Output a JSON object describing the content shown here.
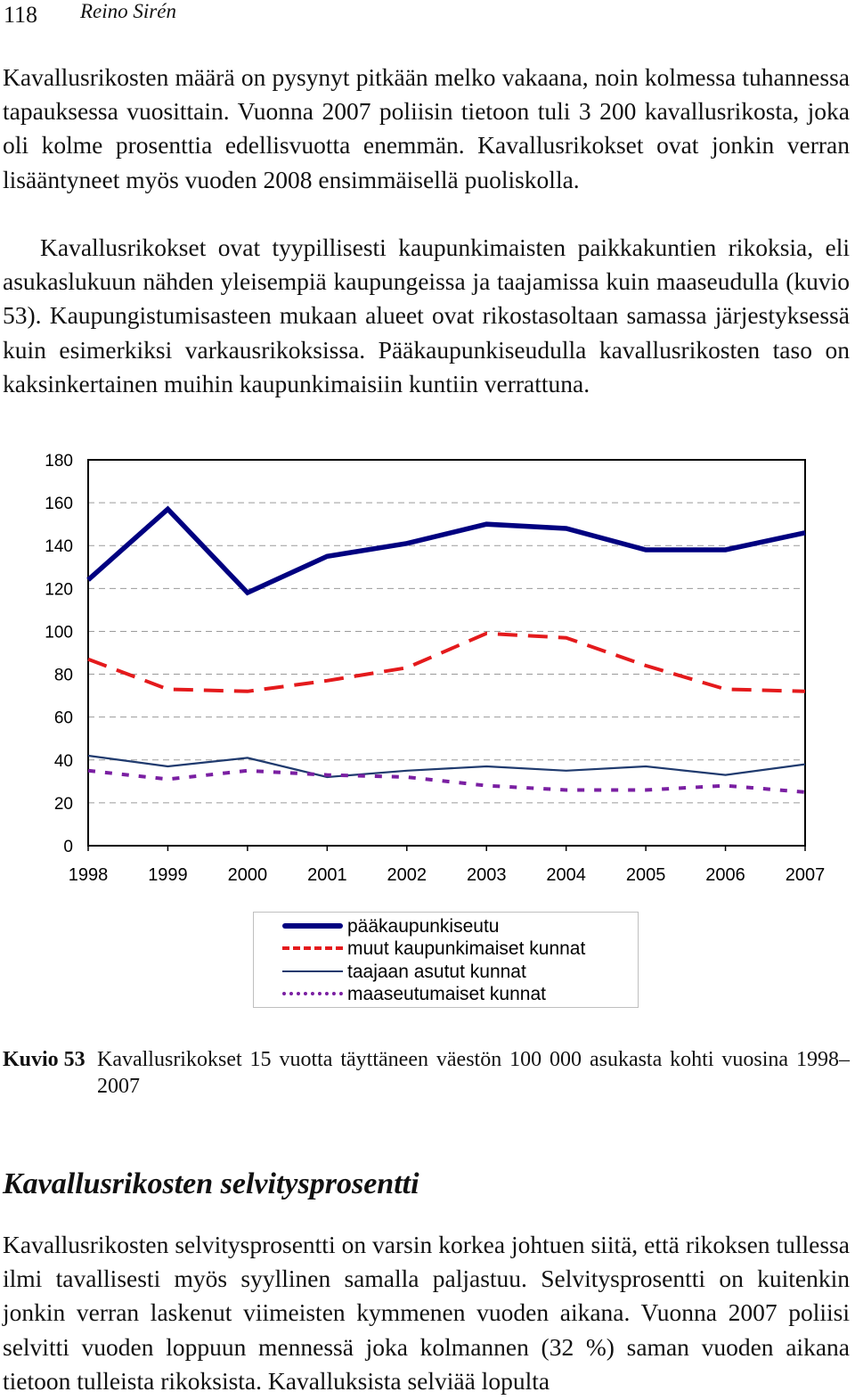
{
  "header": {
    "page_number": "118",
    "author": "Reino Sirén"
  },
  "paragraphs": {
    "p1": "Kavallusrikosten määrä on pysynyt pitkään melko vakaana, noin kolmessa tuhannessa tapauksessa vuosittain. Vuonna 2007 poliisin tietoon tuli 3 200 kavallusrikosta, joka oli kolme prosenttia edellisvuotta enemmän. Kavallusrikokset ovat jonkin verran lisääntyneet myös vuoden 2008 ensimmäisellä puoliskolla.",
    "p2": "Kavallusrikokset ovat tyypillisesti kaupunkimaisten paikkakuntien rikoksia, eli asukaslukuun nähden yleisempiä kaupungeissa ja taajamissa kuin maaseudulla (kuvio 53). Kaupungistumisasteen mukaan alueet ovat rikostasoltaan samassa järjestyksessä kuin esimerkiksi varkausrikoksissa. Pääkaupunkiseudulla kavallusrikosten taso on kaksinkertainen muihin kaupunkimaisiin kuntiin verrattuna.",
    "p3": "Kavallusrikosten selvitysprosentti on varsin korkea johtuen siitä, että rikoksen tullessa ilmi tavallisesti myös syyllinen samalla paljastuu. Selvitysprosentti on kuitenkin jonkin verran laskenut viimeisten kymmenen vuoden aikana. Vuonna 2007 poliisi selvitti vuoden loppuun mennessä joka kolmannen (32 %) saman vuoden aikana tietoon tulleista rikoksista. Kavalluksista selviää lopulta"
  },
  "chart_data": {
    "type": "line",
    "x": [
      "1998",
      "1999",
      "2000",
      "2001",
      "2002",
      "2003",
      "2004",
      "2005",
      "2006",
      "2007"
    ],
    "ylim": [
      0,
      180
    ],
    "yticks": [
      "0",
      "20",
      "40",
      "60",
      "80",
      "100",
      "120",
      "140",
      "160",
      "180"
    ],
    "grid": true,
    "legend_position": "bottom",
    "series": [
      {
        "name": "pääkaupunkiseutu",
        "values": [
          124,
          157,
          118,
          135,
          141,
          150,
          148,
          138,
          138,
          146
        ],
        "color": "#000080",
        "style": "solid-thick"
      },
      {
        "name": "muut kaupunkimaiset kunnat",
        "values": [
          87,
          73,
          72,
          77,
          83,
          99,
          97,
          84,
          73,
          72
        ],
        "color": "#e41a1c",
        "style": "dashed"
      },
      {
        "name": "taajaan asutut kunnat",
        "values": [
          42,
          37,
          41,
          32,
          35,
          37,
          35,
          37,
          33,
          38
        ],
        "color": "#1f3a6e",
        "style": "solid-thin"
      },
      {
        "name": "maaseutumaiset kunnat",
        "values": [
          35,
          31,
          35,
          33,
          32,
          28,
          26,
          26,
          28,
          25
        ],
        "color": "#7a1fa2",
        "style": "dotted"
      }
    ]
  },
  "caption": {
    "label": "Kuvio 53",
    "text": "Kavallusrikokset 15 vuotta täyttäneen väestön 100 000 asukasta kohti vuosina 1998–2007"
  },
  "section_title": "Kavallusrikosten selvitysprosentti"
}
